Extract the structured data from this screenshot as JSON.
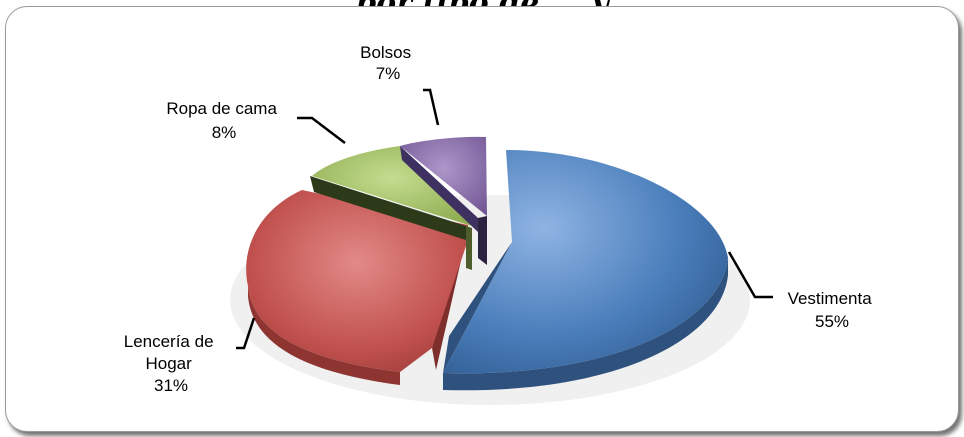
{
  "title": "... por tipo de ... y ...",
  "colors": {
    "Vestimenta": "#4a7ebb",
    "Lencería de Hogar": "#c0504d",
    "Ropa de cama": "#9bbb59",
    "Bolsos": "#8064a2"
  },
  "chart_data": {
    "type": "pie",
    "style": "3d-exploded",
    "slices": [
      {
        "label_lines": [
          "Vestimenta"
        ],
        "percent_label": "55%",
        "value": 55
      },
      {
        "label_lines": [
          "Lencería de",
          "Hogar"
        ],
        "percent_label": "31%",
        "value": 31
      },
      {
        "label_lines": [
          "Ropa de cama"
        ],
        "percent_label": "8%",
        "value": 8
      },
      {
        "label_lines": [
          "Bolsos"
        ],
        "percent_label": "7%",
        "value": 7
      }
    ],
    "legend": "none"
  }
}
